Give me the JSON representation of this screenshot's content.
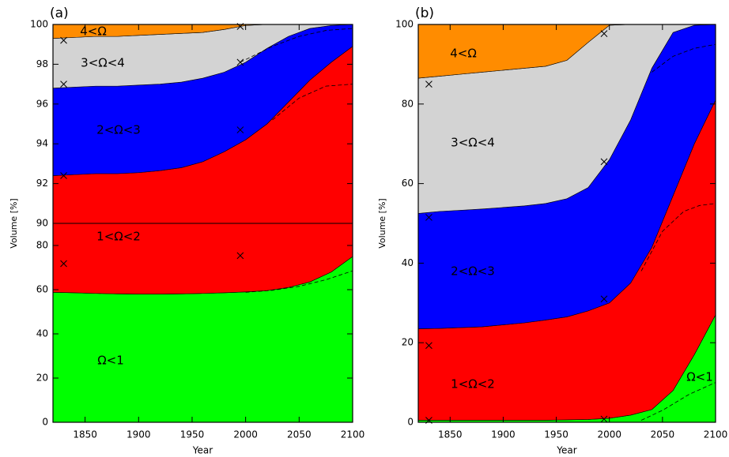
{
  "chart_data": [
    {
      "type": "area",
      "title": "(a)",
      "x_label": "Year",
      "y_label": "Volume [%]",
      "x": [
        1820,
        1840,
        1860,
        1880,
        1900,
        1920,
        1940,
        1960,
        1980,
        2000,
        2020,
        2040,
        2060,
        2080,
        2100
      ],
      "xlim": [
        1820,
        2100
      ],
      "xticks": [
        1850,
        1900,
        1950,
        2000,
        2050,
        2100
      ],
      "ylim": [
        0,
        100
      ],
      "ybreak": 90,
      "yticks": [
        0,
        20,
        40,
        60,
        80,
        90,
        92,
        94,
        96,
        98,
        100
      ],
      "series": [
        {
          "name": "Ω<1",
          "color": "#00ff00",
          "values": [
            58.8,
            58.6,
            58.3,
            58.1,
            58,
            58,
            58.1,
            58.3,
            58.6,
            59,
            59.6,
            61,
            63.5,
            68,
            75
          ]
        },
        {
          "name": "1<Ω<2",
          "color": "#ff0000",
          "values": [
            33.6,
            33.85,
            34.2,
            34.4,
            34.55,
            34.65,
            34.7,
            34.8,
            35.0,
            35.2,
            35.4,
            35.1,
            33.7,
            30.1,
            23.9
          ]
        },
        {
          "name": "2<Ω<3",
          "color": "#0000ff",
          "values": [
            4.4,
            4.4,
            4.4,
            4.4,
            4.4,
            4.35,
            4.3,
            4.2,
            4.0,
            3.9,
            3.8,
            3.3,
            2.6,
            1.85,
            1.1
          ]
        },
        {
          "name": "3<Ω<4",
          "color": "#d3d3d3",
          "values": [
            2.5,
            2.5,
            2.5,
            2.5,
            2.5,
            2.5,
            2.45,
            2.3,
            2.15,
            1.85,
            1.2,
            0.6,
            0.2,
            0.05,
            0
          ]
        },
        {
          "name": "4<Ω",
          "color": "#ff8c00",
          "values": [
            0.7,
            0.65,
            0.6,
            0.6,
            0.55,
            0.5,
            0.45,
            0.4,
            0.25,
            0.05,
            0,
            0,
            0,
            0,
            0
          ]
        }
      ],
      "markers": {
        "x": [
          1830,
          1830,
          1830,
          1830,
          1995,
          1995,
          1995,
          1995
        ],
        "y": [
          99.2,
          97.0,
          92.4,
          71.8,
          99.9,
          98.1,
          94.7,
          75.4
        ]
      },
      "dashed": [
        {
          "x": [
            2000,
            2025,
            2050,
            2075,
            2100
          ],
          "y": [
            58.8,
            59.7,
            61.5,
            64.5,
            68.5
          ]
        },
        {
          "x": [
            2025,
            2050,
            2075,
            2100
          ],
          "y": [
            95.2,
            96.3,
            96.9,
            97.0
          ]
        },
        {
          "x": [
            1995,
            2025,
            2050,
            2075,
            2100
          ],
          "y": [
            98.1,
            98.9,
            99.4,
            99.7,
            99.8
          ]
        }
      ]
    },
    {
      "type": "area",
      "title": "(b)",
      "x_label": "Year",
      "y_label": "Volume [%]",
      "x": [
        1820,
        1840,
        1860,
        1880,
        1900,
        1920,
        1940,
        1960,
        1980,
        2000,
        2020,
        2040,
        2060,
        2080,
        2100
      ],
      "xlim": [
        1820,
        2100
      ],
      "xticks": [
        1850,
        1900,
        1950,
        2000,
        2050,
        2100
      ],
      "ylim": [
        0,
        100
      ],
      "yticks": [
        0,
        20,
        40,
        60,
        80,
        100
      ],
      "series": [
        {
          "name": "Ω<1",
          "color": "#00ff00",
          "values": [
            0.5,
            0.5,
            0.5,
            0.5,
            0.5,
            0.5,
            0.5,
            0.6,
            0.7,
            1.0,
            1.8,
            3.2,
            8,
            17,
            27
          ]
        },
        {
          "name": "1<Ω<2",
          "color": "#ff0000",
          "values": [
            23.0,
            23.1,
            23.3,
            23.5,
            24.0,
            24.5,
            25.2,
            25.9,
            27.3,
            29.0,
            33.2,
            40.8,
            49.0,
            53.0,
            54.0
          ]
        },
        {
          "name": "2<Ω<3",
          "color": "#0000ff",
          "values": [
            29.0,
            29.4,
            29.5,
            29.6,
            29.5,
            29.4,
            29.3,
            29.7,
            31.0,
            36.0,
            41.0,
            45.0,
            41.0,
            29.8,
            19.0
          ]
        },
        {
          "name": "3<Ω<4",
          "color": "#d3d3d3",
          "values": [
            34.0,
            34.0,
            34.2,
            34.4,
            34.5,
            34.6,
            34.5,
            34.8,
            36.5,
            33.8,
            24.0,
            11.0,
            2.0,
            0.2,
            0
          ]
        },
        {
          "name": "4<Ω",
          "color": "#ff8c00",
          "values": [
            13.5,
            13.0,
            12.5,
            12.0,
            11.5,
            11.0,
            10.5,
            9.0,
            4.5,
            0.2,
            0,
            0,
            0,
            0,
            0
          ]
        }
      ],
      "markers": {
        "x": [
          1830,
          1830,
          1830,
          1830,
          1995,
          1995,
          1995,
          1995
        ],
        "y": [
          85,
          51.5,
          19.3,
          0.5,
          97.7,
          65.5,
          31,
          0.8
        ]
      },
      "dashed": [
        {
          "x": [
            2030,
            2050,
            2075,
            2100
          ],
          "y": [
            0.5,
            3,
            7,
            10
          ]
        },
        {
          "x": [
            2030,
            2050,
            2070,
            2085,
            2100
          ],
          "y": [
            38,
            48,
            53,
            54.5,
            55
          ]
        },
        {
          "x": [
            2040,
            2060,
            2080,
            2100
          ],
          "y": [
            88,
            92,
            94,
            95
          ]
        }
      ]
    }
  ]
}
